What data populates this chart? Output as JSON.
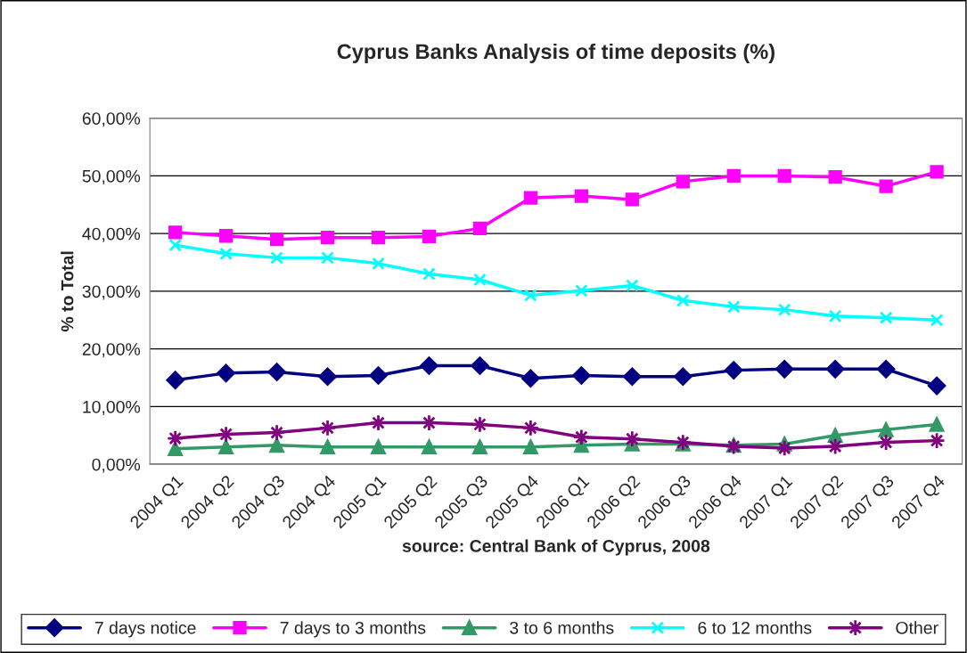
{
  "chart_data": {
    "type": "line",
    "title": "Cyprus Banks Analysis of time deposits (%)",
    "xlabel": "source: Central Bank of Cyprus, 2008",
    "ylabel": "% to Total",
    "categories": [
      "2004 Q1",
      "2004 Q2",
      "2004 Q3",
      "2004 Q4",
      "2005 Q1",
      "2005 Q2",
      "2005 Q3",
      "2005 Q4",
      "2006 Q1",
      "2006 Q2",
      "2006 Q3",
      "2006 Q4",
      "2007 Q1",
      "2007 Q2",
      "2007 Q3",
      "2007 Q4"
    ],
    "series": [
      {
        "name": "7 days notice",
        "color": "#000080",
        "marker": "diamond",
        "values": [
          14.6,
          15.8,
          16.0,
          15.2,
          15.4,
          17.1,
          17.1,
          14.9,
          15.4,
          15.2,
          15.2,
          16.3,
          16.5,
          16.5,
          16.5,
          13.6
        ]
      },
      {
        "name": "7 days to 3 months",
        "color": "#ff00ff",
        "marker": "square",
        "values": [
          40.2,
          39.6,
          39.0,
          39.3,
          39.3,
          39.5,
          40.9,
          46.2,
          46.5,
          45.9,
          49.0,
          50.0,
          50.0,
          49.8,
          48.2,
          50.7
        ]
      },
      {
        "name": "3 to 6 months",
        "color": "#339966",
        "marker": "triangle",
        "values": [
          2.7,
          3.0,
          3.3,
          3.0,
          3.0,
          3.0,
          3.0,
          3.0,
          3.3,
          3.5,
          3.5,
          3.3,
          3.5,
          5.0,
          6.0,
          6.9
        ]
      },
      {
        "name": "6 to 12 months",
        "color": "#00ffff",
        "marker": "cross",
        "values": [
          38.0,
          36.5,
          35.8,
          35.8,
          34.8,
          33.0,
          32.0,
          29.3,
          30.1,
          31.0,
          28.4,
          27.3,
          26.8,
          25.7,
          25.4,
          25.0
        ]
      },
      {
        "name": "Other",
        "color": "#800080",
        "marker": "star",
        "values": [
          4.5,
          5.2,
          5.5,
          6.3,
          7.2,
          7.2,
          6.9,
          6.3,
          4.7,
          4.4,
          3.8,
          3.1,
          2.8,
          3.1,
          3.8,
          4.1
        ]
      }
    ],
    "ylim": [
      0,
      60
    ],
    "yticks": [
      {
        "value": 0,
        "label": "0,00%"
      },
      {
        "value": 10,
        "label": "10,00%"
      },
      {
        "value": 20,
        "label": "20,00%"
      },
      {
        "value": 30,
        "label": "30,00%"
      },
      {
        "value": 40,
        "label": "40,00%"
      },
      {
        "value": 50,
        "label": "50,00%"
      },
      {
        "value": 60,
        "label": "60,00%"
      }
    ],
    "grid": "y",
    "legend": "bottom",
    "line_style": "solid"
  }
}
